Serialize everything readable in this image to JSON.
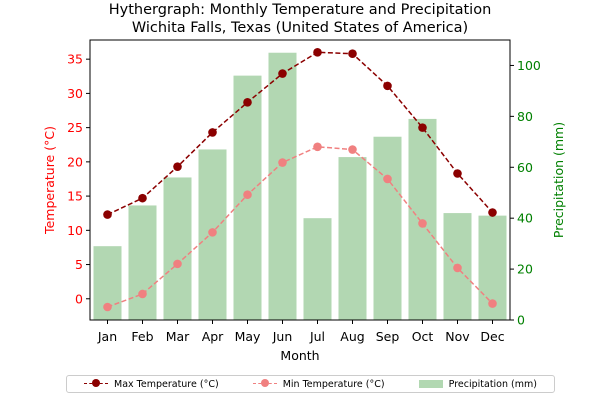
{
  "chart_data": {
    "type": "bar+line",
    "title": "Hythergraph: Monthly Temperature and Precipitation",
    "subtitle": "Wichita Falls, Texas (United States of America)",
    "xlabel": "Month",
    "ylabel_left": "Temperature (°C)",
    "ylabel_right": "Precipitation (mm)",
    "categories": [
      "Jan",
      "Feb",
      "Mar",
      "Apr",
      "May",
      "Jun",
      "Jul",
      "Aug",
      "Sep",
      "Oct",
      "Nov",
      "Dec"
    ],
    "ylim_left": [
      -3.1,
      37.8
    ],
    "ylim_right": [
      0,
      110
    ],
    "yticks_left": [
      0,
      5,
      10,
      15,
      20,
      25,
      30,
      35
    ],
    "yticks_right": [
      0,
      20,
      40,
      60,
      80,
      100
    ],
    "series": [
      {
        "name": "Max Temperature (°C)",
        "axis": "left",
        "kind": "line",
        "style": "dashed",
        "color": "#8B0000",
        "values": [
          12.3,
          14.7,
          19.3,
          24.3,
          28.7,
          32.9,
          36.0,
          35.8,
          31.1,
          25.0,
          18.3,
          12.6
        ]
      },
      {
        "name": "Min Temperature (°C)",
        "axis": "left",
        "kind": "line",
        "style": "dashed",
        "color": "#F08080",
        "values": [
          -1.2,
          0.7,
          5.1,
          9.7,
          15.2,
          19.9,
          22.2,
          21.8,
          17.5,
          11.0,
          4.5,
          -0.7
        ]
      },
      {
        "name": "Precipitation (mm)",
        "axis": "right",
        "kind": "bar",
        "color": "#228B22",
        "opacity": 0.35,
        "values": [
          29,
          45,
          56,
          67,
          96,
          105,
          40,
          64,
          72,
          79,
          42,
          41
        ]
      }
    ],
    "legend_position": "bottom",
    "left_axis_color": "#FF0000",
    "right_axis_color": "#008000"
  }
}
